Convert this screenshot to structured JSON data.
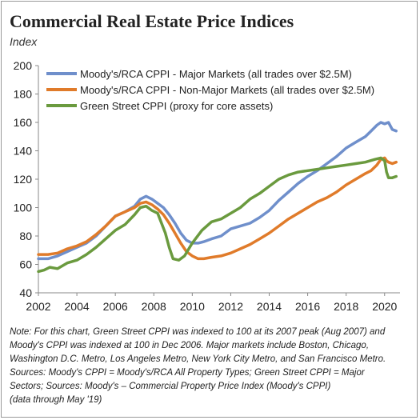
{
  "title": "Commercial Real Estate Price Indices",
  "subtitle": "Index",
  "notes": [
    "Note: For this chart, Green Street CPPI was indexed to 100 at its 2007 peak (Aug 2007) and",
    "Moody's CPPI was indexed at 100 in Dec 2006. Major markets include Boston, Chicago,",
    "Washington D.C. Metro, Los Angeles Metro, New York City Metro, and San Francisco Metro.",
    "Sources: Moody's CPPI = Moody's/RCA All Property Types; Green Street CPPI = Major",
    "Sectors; Sources: Moody's – Commercial Property Price Index (Moody's CPPI)",
    "(data through May '19)"
  ],
  "chart_data": {
    "type": "line",
    "title": "Commercial Real Estate Price Indices",
    "ylabel": "Index",
    "xlabel": "",
    "xlim": [
      2002,
      2020.8
    ],
    "ylim": [
      40,
      200
    ],
    "x_ticks": [
      2002,
      2004,
      2006,
      2008,
      2010,
      2012,
      2014,
      2016,
      2018,
      2020
    ],
    "y_ticks": [
      40,
      60,
      80,
      100,
      120,
      140,
      160,
      180,
      200
    ],
    "grid": false,
    "legend_position": "top-left",
    "series": [
      {
        "name": "Moody's/RCA CPPI - Major Markets  (all trades over $2.5M)",
        "color": "#6f8fcb",
        "x": [
          2002,
          2002.5,
          2003,
          2003.5,
          2004,
          2004.5,
          2005,
          2005.5,
          2006,
          2006.5,
          2007,
          2007.3,
          2007.6,
          2007.9,
          2008.2,
          2008.5,
          2008.8,
          2009.1,
          2009.4,
          2009.7,
          2010,
          2010.3,
          2010.6,
          2011,
          2011.5,
          2012,
          2012.5,
          2013,
          2013.5,
          2014,
          2014.5,
          2015,
          2015.5,
          2016,
          2016.5,
          2017,
          2017.5,
          2018,
          2018.5,
          2019,
          2019.3,
          2019.6,
          2019.8,
          2020,
          2020.2,
          2020.4,
          2020.6
        ],
        "values": [
          64,
          64,
          66,
          69,
          72,
          75,
          80,
          87,
          94,
          97,
          101,
          106,
          108,
          106,
          103,
          100,
          95,
          89,
          82,
          77,
          75,
          75,
          76,
          78,
          80,
          85,
          87,
          89,
          93,
          98,
          105,
          111,
          117,
          122,
          126,
          131,
          136,
          142,
          146,
          150,
          154,
          158,
          160,
          159,
          160,
          155,
          154
        ]
      },
      {
        "name": "Moody's/RCA CPPI - Non-Major Markets  (all trades over $2.5M)",
        "color": "#e07b2a",
        "x": [
          2002,
          2002.5,
          2003,
          2003.5,
          2004,
          2004.5,
          2005,
          2005.5,
          2006,
          2006.5,
          2007,
          2007.3,
          2007.6,
          2007.9,
          2008.2,
          2008.5,
          2008.8,
          2009.1,
          2009.4,
          2009.7,
          2010,
          2010.3,
          2010.6,
          2011,
          2011.5,
          2012,
          2012.5,
          2013,
          2013.5,
          2014,
          2014.5,
          2015,
          2015.5,
          2016,
          2016.5,
          2017,
          2017.5,
          2018,
          2018.5,
          2019,
          2019.3,
          2019.6,
          2019.8,
          2020,
          2020.1,
          2020.2,
          2020.4,
          2020.6
        ],
        "values": [
          67,
          67,
          68,
          71,
          73,
          76,
          81,
          87,
          94,
          97,
          100,
          103,
          104,
          102,
          99,
          95,
          89,
          82,
          75,
          69,
          66,
          64,
          64,
          65,
          66,
          68,
          71,
          74,
          78,
          82,
          87,
          92,
          96,
          100,
          104,
          107,
          111,
          116,
          120,
          124,
          126,
          130,
          134,
          135,
          133,
          132,
          131,
          132
        ]
      },
      {
        "name": "Green Street CPPI (proxy for core assets)",
        "color": "#6a9a3e",
        "x": [
          2002,
          2002.3,
          2002.6,
          2003,
          2003.5,
          2004,
          2004.5,
          2005,
          2005.5,
          2006,
          2006.5,
          2007,
          2007.3,
          2007.6,
          2007.9,
          2008.2,
          2008.4,
          2008.6,
          2008.8,
          2009,
          2009.3,
          2009.6,
          2010,
          2010.5,
          2011,
          2011.5,
          2012,
          2012.5,
          2013,
          2013.5,
          2014,
          2014.5,
          2015,
          2015.5,
          2016,
          2016.5,
          2017,
          2017.5,
          2018,
          2018.5,
          2019,
          2019.5,
          2019.8,
          2020,
          2020.1,
          2020.2,
          2020.4,
          2020.6
        ],
        "values": [
          55,
          56,
          58,
          57,
          61,
          63,
          67,
          72,
          78,
          84,
          88,
          95,
          100,
          101,
          98,
          96,
          89,
          82,
          72,
          64,
          63,
          66,
          75,
          84,
          90,
          92,
          96,
          100,
          106,
          110,
          115,
          120,
          123,
          125,
          126,
          127,
          128,
          129,
          130,
          131,
          132,
          134,
          135,
          133,
          125,
          121,
          121,
          122
        ]
      }
    ]
  }
}
